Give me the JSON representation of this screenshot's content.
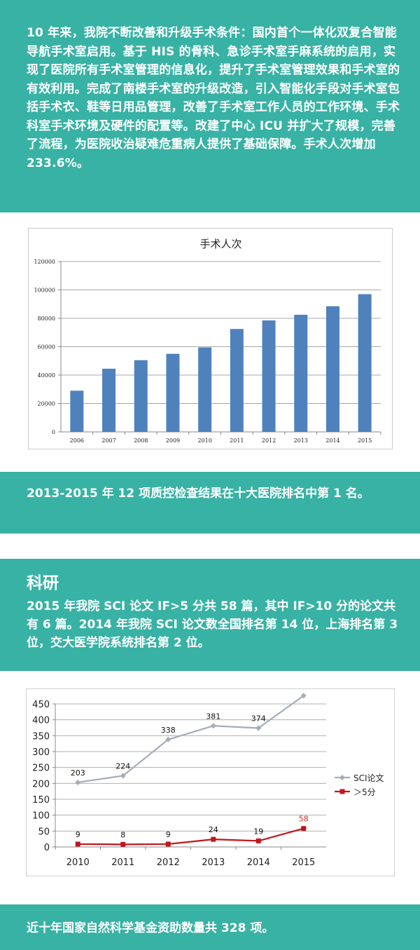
{
  "intro": {
    "text": "10 年来，我院不断改善和升级手术条件：国内首个一体化双复合智能导航手术室启用。基于 HIS 的骨科、急诊手术室手麻系统的启用，实现了医院所有手术室管理的信息化，提升了手术室管理效果和手术室的有效利用。完成了南楼手术室的升级改造，引入智能化手段对手术室包括手术衣、鞋等日用品管理，改善了手术室工作人员的工作环境、手术科室手术环境及硬件的配置等。改建了中心 ICU 并扩大了规模，完善了流程，为医院收治疑难危重病人提供了基础保障。手术人次增加 233.6%。"
  },
  "quality": {
    "text": "2013-2015 年 12 项质控检查结果在十大医院排名中第 1 名。"
  },
  "research": {
    "heading": "科研",
    "text": "2015 年我院 SCI 论文 IF>5 分共 58 篇，其中 IF>10 分的论文共有 6 篇。2014 年我院 SCI 论文数全国排名第 14 位，上海排名第 3 位，交大医学院系统排名第 2 位。"
  },
  "funding": {
    "text": "近十年国家自然科学基金资助数量共 328 项。"
  },
  "chart_data": [
    {
      "type": "bar",
      "title": "手术人次",
      "categories": [
        "2006",
        "2007",
        "2008",
        "2009",
        "2010",
        "2011",
        "2012",
        "2013",
        "2014",
        "2015"
      ],
      "values": [
        29000,
        44500,
        50500,
        55000,
        59500,
        72500,
        78500,
        82500,
        88500,
        97000
      ],
      "ylim": [
        0,
        120000
      ],
      "yticks": [
        0,
        20000,
        40000,
        60000,
        80000,
        100000,
        120000
      ],
      "grid": true,
      "color": "#4f81bd"
    },
    {
      "type": "line",
      "categories": [
        "2010",
        "2011",
        "2012",
        "2013",
        "2014",
        "2015"
      ],
      "ylim": [
        0,
        450
      ],
      "yticks": [
        0,
        50,
        100,
        150,
        200,
        250,
        300,
        350,
        400,
        450
      ],
      "grid": true,
      "legend": "right",
      "series": [
        {
          "name": "SCI论文",
          "values": [
            203,
            224,
            338,
            381,
            374,
            476
          ],
          "color": "#a6adb8",
          "highlight_last_color": "#c0392b"
        },
        {
          "name": "＞5分",
          "values": [
            9,
            8,
            9,
            24,
            19,
            58
          ],
          "color": "#c0161e",
          "highlight_last_color": "#c0392b"
        }
      ]
    }
  ]
}
